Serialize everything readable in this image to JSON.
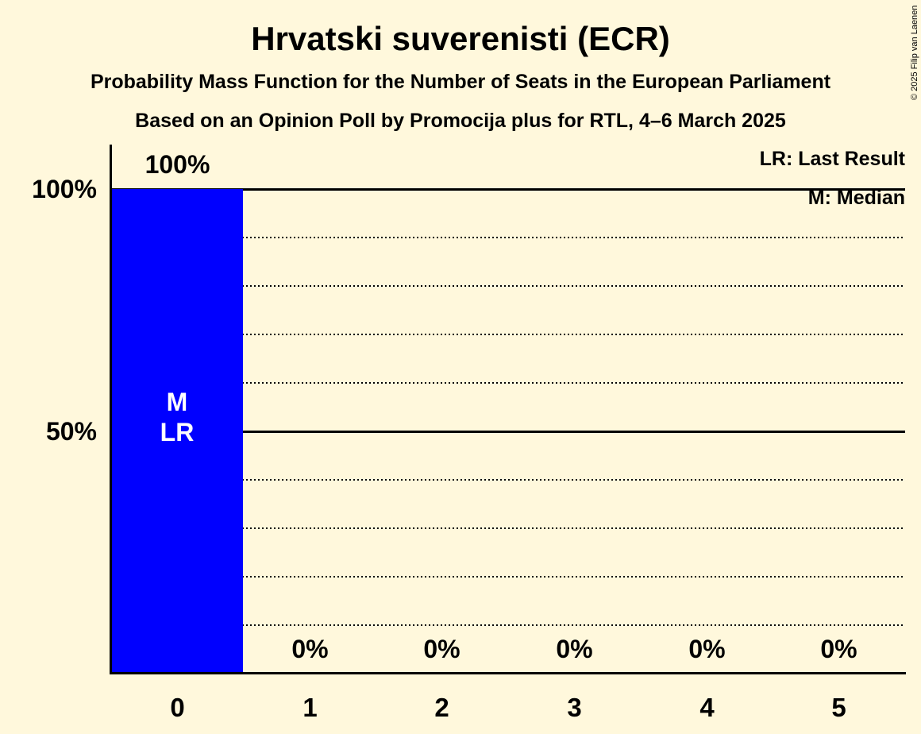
{
  "page": {
    "title": "Hrvatski suverenisti (ECR)",
    "subtitle": "Probability Mass Function for the Number of Seats in the European Parliament",
    "source_line": "Based on an Opinion Poll by Promocija plus for RTL, 4–6 March 2025",
    "copyright": "© 2025 Filip van Laenen"
  },
  "legend": {
    "last_result": "LR: Last Result",
    "median": "M: Median"
  },
  "colors": {
    "background": "#FFF8DC",
    "bar": "#0000FF",
    "text": "#000000",
    "bar_marker_text": "#FFFFFF",
    "gridline": "#000000"
  },
  "y_axis": {
    "tick_labels": [
      "100%",
      "50%"
    ]
  },
  "chart_data": {
    "type": "bar",
    "title": "Hrvatski suverenisti (ECR)",
    "categories": [
      "0",
      "1",
      "2",
      "3",
      "4",
      "5"
    ],
    "values": [
      100,
      0,
      0,
      0,
      0,
      0
    ],
    "value_labels": [
      "100%",
      "0%",
      "0%",
      "0%",
      "0%",
      "0%"
    ],
    "ylim": [
      0,
      100
    ],
    "y_ticks": [
      {
        "value": 100,
        "label": "100%"
      },
      {
        "value": 50,
        "label": "50%"
      }
    ],
    "gridlines": {
      "solid_percent": [
        100,
        50
      ],
      "dotted_percent": [
        90,
        80,
        70,
        60,
        40,
        30,
        20,
        10
      ]
    },
    "bar_markers": {
      "category": "0",
      "lines": [
        "M",
        "LR"
      ]
    },
    "legend_entries": [
      "LR: Last Result",
      "M: Median"
    ],
    "grid": true,
    "legend_position": "top-right"
  }
}
